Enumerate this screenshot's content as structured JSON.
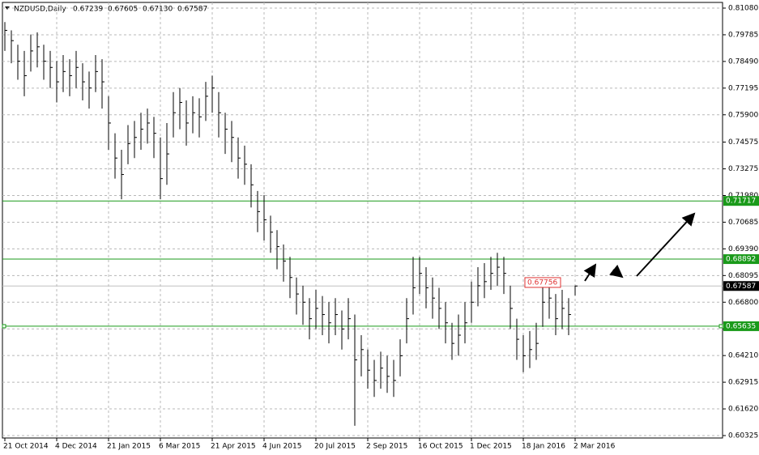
{
  "chart_data": {
    "type": "ohlc",
    "title": "NZDUSD,Daily",
    "header_values": [
      "0.67239",
      "0.67605",
      "0.67130",
      "0.67587"
    ],
    "xlabels": [
      "21 Oct 2014",
      "4 Dec 2014",
      "21 Jan 2015",
      "6 Mar 2015",
      "21 Apr 2015",
      "4 Jun 2015",
      "20 Jul 2015",
      "2 Sep 2015",
      "16 Oct 2015",
      "1 Dec 2015",
      "18 Jan 2016",
      "2 Mar 2016"
    ],
    "high": [
      0.804,
      0.8,
      0.793,
      0.79,
      0.798,
      0.799,
      0.793,
      0.79,
      0.785,
      0.788,
      0.786,
      0.79,
      0.784,
      0.78,
      0.788,
      0.786,
      0.768,
      0.75,
      0.742,
      0.754,
      0.756,
      0.76,
      0.762,
      0.758,
      0.748,
      0.755,
      0.77,
      0.772,
      0.766,
      0.768,
      0.767,
      0.775,
      0.778,
      0.77,
      0.76,
      0.756,
      0.748,
      0.744,
      0.735,
      0.722,
      0.72,
      0.71,
      0.703,
      0.696,
      0.69,
      0.68,
      0.676,
      0.67,
      0.674,
      0.671,
      0.668,
      0.67,
      0.664,
      0.67,
      0.662,
      0.652,
      0.645,
      0.64,
      0.644,
      0.642,
      0.64,
      0.65,
      0.67,
      0.69,
      0.69,
      0.685,
      0.68,
      0.675,
      0.668,
      0.658,
      0.662,
      0.668,
      0.678,
      0.685,
      0.687,
      0.69,
      0.692,
      0.69,
      0.676,
      0.66,
      0.652,
      0.654,
      0.658,
      0.676,
      0.678,
      0.672,
      0.674,
      0.67,
      0.67605
    ],
    "low": [
      0.79,
      0.784,
      0.776,
      0.768,
      0.78,
      0.782,
      0.776,
      0.772,
      0.765,
      0.77,
      0.768,
      0.772,
      0.766,
      0.762,
      0.77,
      0.762,
      0.742,
      0.728,
      0.718,
      0.735,
      0.738,
      0.742,
      0.745,
      0.738,
      0.718,
      0.725,
      0.748,
      0.752,
      0.744,
      0.75,
      0.748,
      0.756,
      0.76,
      0.748,
      0.74,
      0.736,
      0.728,
      0.725,
      0.714,
      0.702,
      0.698,
      0.692,
      0.684,
      0.678,
      0.67,
      0.662,
      0.657,
      0.65,
      0.655,
      0.652,
      0.648,
      0.652,
      0.645,
      0.65,
      0.608,
      0.632,
      0.626,
      0.622,
      0.626,
      0.624,
      0.622,
      0.632,
      0.648,
      0.662,
      0.672,
      0.665,
      0.66,
      0.655,
      0.648,
      0.64,
      0.642,
      0.648,
      0.658,
      0.666,
      0.67,
      0.674,
      0.676,
      0.672,
      0.655,
      0.64,
      0.634,
      0.636,
      0.64,
      0.656,
      0.66,
      0.652,
      0.655,
      0.652,
      0.6713
    ],
    "close": [
      0.8,
      0.795,
      0.785,
      0.778,
      0.79,
      0.792,
      0.785,
      0.782,
      0.775,
      0.78,
      0.778,
      0.782,
      0.775,
      0.772,
      0.78,
      0.775,
      0.755,
      0.738,
      0.73,
      0.745,
      0.748,
      0.752,
      0.755,
      0.75,
      0.728,
      0.74,
      0.76,
      0.765,
      0.755,
      0.76,
      0.758,
      0.768,
      0.772,
      0.76,
      0.752,
      0.748,
      0.738,
      0.735,
      0.725,
      0.712,
      0.708,
      0.702,
      0.695,
      0.688,
      0.68,
      0.672,
      0.668,
      0.66,
      0.665,
      0.662,
      0.658,
      0.662,
      0.655,
      0.66,
      0.64,
      0.645,
      0.635,
      0.63,
      0.636,
      0.632,
      0.63,
      0.642,
      0.66,
      0.675,
      0.682,
      0.675,
      0.67,
      0.665,
      0.658,
      0.648,
      0.652,
      0.658,
      0.668,
      0.676,
      0.678,
      0.682,
      0.685,
      0.682,
      0.665,
      0.65,
      0.642,
      0.645,
      0.648,
      0.668,
      0.67,
      0.66,
      0.665,
      0.662,
      0.67587
    ],
    "ylim": [
      0.60325,
      0.8108
    ],
    "yticks": [
      {
        "value": 0.8108,
        "label": "0.81080"
      },
      0.79785,
      {
        "value": 0.7849,
        "label": "0.78490"
      },
      0.77195,
      {
        "value": 0.759,
        "label": "0.75900"
      },
      0.74575,
      0.73275,
      {
        "value": 0.7198,
        "label": "0.71980"
      },
      0.70685,
      {
        "value": 0.6939,
        "label": "0.69390"
      },
      0.68095,
      {
        "value": 0.668,
        "label": "0.66800"
      },
      0.65505,
      {
        "value": 0.6421,
        "label": "0.64210"
      },
      0.62915,
      {
        "value": 0.6162,
        "label": "0.61620"
      },
      0.60325
    ],
    "levels": [
      0.71717,
      0.68892,
      0.65635
    ],
    "level_color": "#1a9a1a",
    "last_price": 0.67587,
    "marked_price": 0.67756,
    "grid": true,
    "color": "#000000"
  }
}
